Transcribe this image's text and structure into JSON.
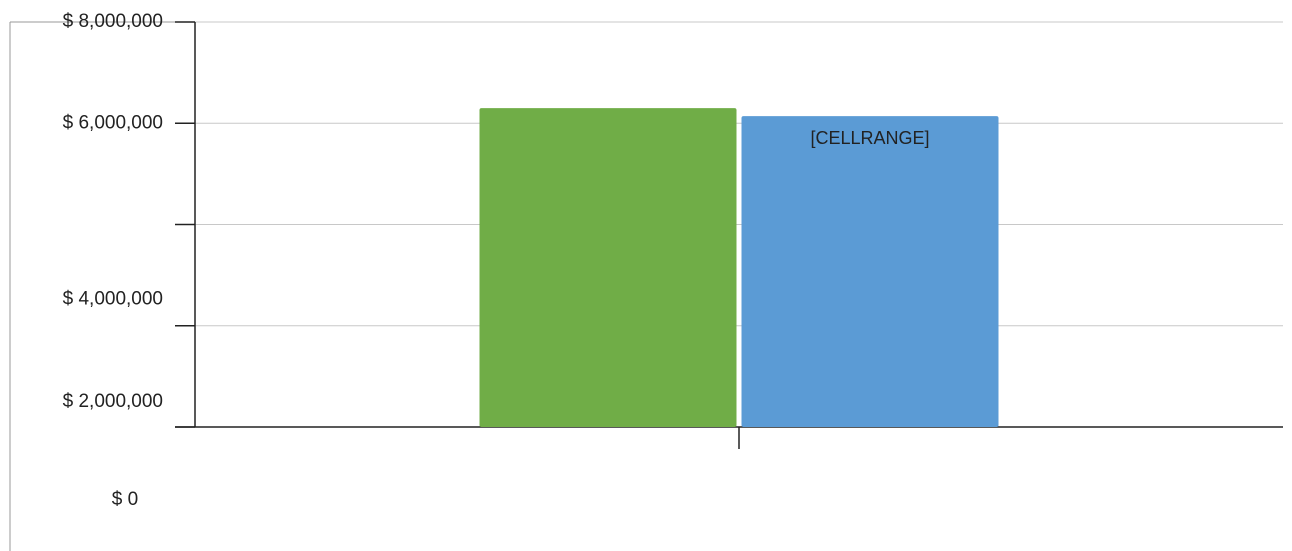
{
  "chart_data": {
    "type": "bar",
    "categories": [
      null
    ],
    "series": [
      {
        "color": "#70ad47",
        "values": [
          6300000
        ]
      },
      {
        "color": "#5b9bd5",
        "values": [
          6140000
        ]
      }
    ],
    "annotations": [
      "[CELLRANGE]"
    ],
    "ylim": [
      0,
      8000000
    ],
    "yticks": [
      {
        "value": 0,
        "label": "$ 0"
      },
      {
        "value": 2000000,
        "label": "$ 2,000,000"
      },
      {
        "value": 4000000,
        "label": "$ 4,000,000"
      },
      {
        "value": 6000000,
        "label": "$ 6,000,000"
      },
      {
        "value": 8000000,
        "label": "$ 8,000,000"
      }
    ],
    "grid": true
  }
}
